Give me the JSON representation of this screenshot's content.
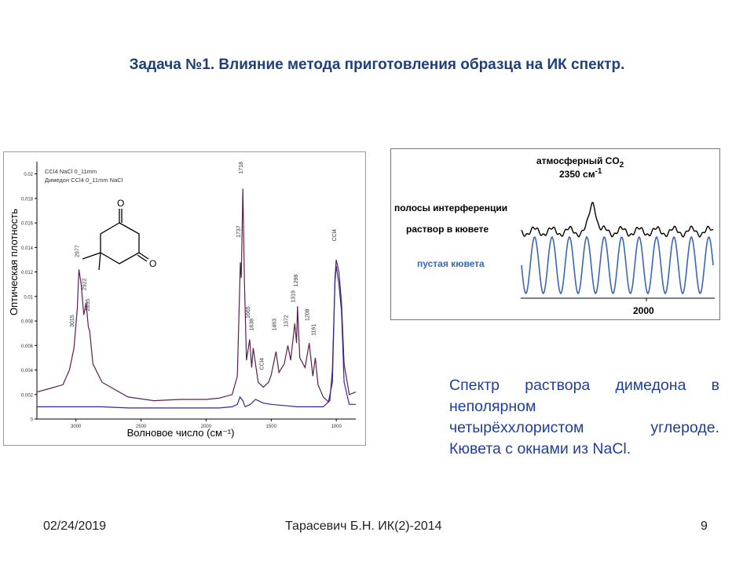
{
  "slide": {
    "title": "Задача №1. Влияние метода приготовления образца на ИК спектр.",
    "description_lines": [
      "Спектр раствора димедона в",
      "неполярном",
      "четырёххлористом углероде.",
      "Кювета с окнами из NaCl."
    ],
    "footer": {
      "date": "02/24/2019",
      "author": "Тарасевич Б.Н. ИК(2)-2014",
      "page": "9"
    }
  },
  "left_figure": {
    "legend": [
      "CCl4 NaCl 0_11mm",
      "Димедон CCl4 0_11mm NaCl"
    ],
    "ylabel": "Оптическая плотность",
    "xlabel": "Волновое число (см⁻¹)",
    "y_ticks": [
      "0.02",
      "0.018",
      "0.016",
      "0.014",
      "0.012",
      "0.01",
      "0.008",
      "0.006",
      "0.004",
      "0.002",
      "0"
    ],
    "x_ticks": [
      "3000",
      "2500",
      "2000",
      "1500",
      "1000"
    ],
    "peak_labels": [
      "3015",
      "2977",
      "2922",
      "2895",
      "1737",
      "1718",
      "1665",
      "1638",
      "CCl4",
      "1463",
      "1372",
      "1319",
      "1298",
      "1208",
      "1161",
      "CCl4"
    ],
    "molecule_atoms": [
      "O",
      "O"
    ]
  },
  "right_figure": {
    "label_co2": "атмосферный CO",
    "label_co2_sub": "2",
    "label_co2_wn": "2350 см",
    "label_co2_sup": "-1",
    "label_interference": "полосы интерференции",
    "label_solution": "раствор в кювете",
    "label_empty": "пустая кювета",
    "x_tick": "2000"
  },
  "chart_data": [
    {
      "type": "line",
      "title": "",
      "xlabel": "Волновое число (см⁻¹)",
      "ylabel": "Оптическая плотность",
      "xlim": [
        3300,
        850
      ],
      "ylim": [
        0,
        0.021
      ],
      "legend": "top-left",
      "series": [
        {
          "name": "Димедон CCl4 0_11mm NaCl",
          "x": [
            3300,
            3200,
            3100,
            3050,
            3015,
            2990,
            2977,
            2960,
            2940,
            2922,
            2905,
            2895,
            2870,
            2800,
            2600,
            2400,
            2200,
            2000,
            1900,
            1800,
            1760,
            1737,
            1730,
            1718,
            1705,
            1690,
            1665,
            1650,
            1638,
            1600,
            1560,
            1520,
            1500,
            1463,
            1440,
            1400,
            1372,
            1350,
            1319,
            1305,
            1298,
            1280,
            1240,
            1208,
            1180,
            1161,
            1140,
            1100,
            1060,
            1030,
            1010,
            1000,
            980,
            960,
            940,
            900,
            850
          ],
          "y": [
            0.0022,
            0.0025,
            0.0028,
            0.004,
            0.0058,
            0.009,
            0.0122,
            0.011,
            0.0085,
            0.0095,
            0.0075,
            0.0072,
            0.0045,
            0.003,
            0.0018,
            0.0015,
            0.0016,
            0.0016,
            0.0017,
            0.002,
            0.0035,
            0.0128,
            0.0115,
            0.0188,
            0.011,
            0.0048,
            0.0065,
            0.0042,
            0.0058,
            0.003,
            0.0026,
            0.003,
            0.0036,
            0.0055,
            0.0038,
            0.0045,
            0.006,
            0.0048,
            0.0078,
            0.0062,
            0.0092,
            0.005,
            0.0042,
            0.0062,
            0.0035,
            0.005,
            0.0028,
            0.0018,
            0.0014,
            0.003,
            0.0115,
            0.013,
            0.012,
            0.0095,
            0.0045,
            0.002,
            0.0022
          ]
        },
        {
          "name": "CCl4 NaCl 0_11mm",
          "x": [
            3300,
            3000,
            2800,
            2600,
            2400,
            2200,
            2000,
            1900,
            1800,
            1760,
            1740,
            1718,
            1700,
            1660,
            1640,
            1620,
            1600,
            1560,
            1500,
            1400,
            1300,
            1200,
            1100,
            1050,
            1030,
            1010,
            1000,
            980,
            960,
            940,
            900,
            850
          ],
          "y": [
            0.001,
            0.001,
            0.001,
            0.0009,
            0.0009,
            0.0009,
            0.0009,
            0.0009,
            0.001,
            0.0012,
            0.0018,
            0.0015,
            0.001,
            0.0012,
            0.0014,
            0.0016,
            0.0015,
            0.0013,
            0.0012,
            0.0011,
            0.001,
            0.001,
            0.001,
            0.0015,
            0.004,
            0.0112,
            0.0125,
            0.011,
            0.0088,
            0.003,
            0.0012,
            0.0012
          ]
        }
      ]
    },
    {
      "type": "line",
      "title": "",
      "xlabel": "",
      "ylabel": "",
      "x_ticks": [
        2000
      ],
      "series": [
        {
          "name": "раствор в кювете",
          "note_values": "interference pattern with CO2 band near 2350"
        },
        {
          "name": "пустая кювета",
          "note_values": "interference fringes"
        }
      ]
    }
  ]
}
